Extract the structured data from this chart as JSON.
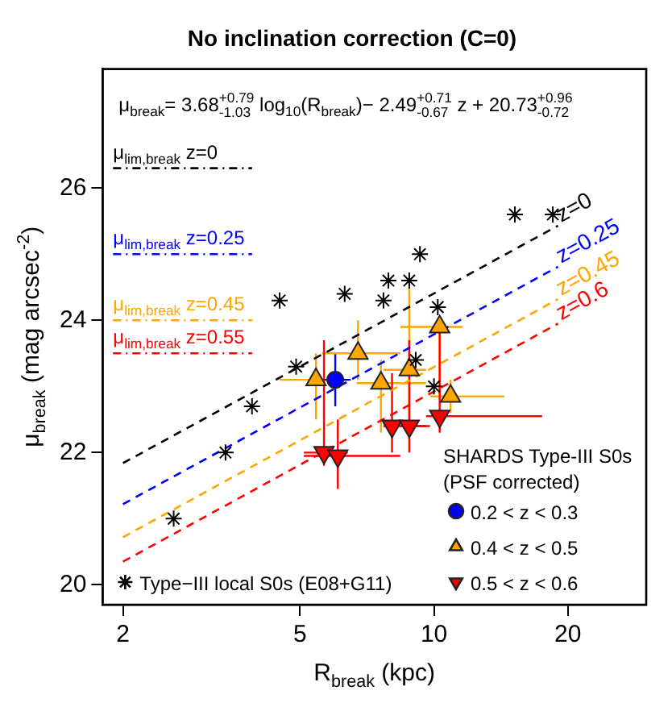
{
  "chart_data": {
    "type": "scatter",
    "title": "No inclination correction (C=0)",
    "xlabel": "R$_{break}$ (kpc)",
    "ylabel": "μ$_{break}$ (mag arcsec$^{-2}$)",
    "annotations": [
      "μ$_{break}$= 3.68$^{+0.79}$$_{-1.03}$ log$_{10}$(R$_{break}$)− 2.49$^{+0.71}$$_{-0.67}$ z + 20.73$^{+0.96}$$_{-0.72}$"
    ],
    "legend_title": "SHARDS Type-III S0s\n(PSF corrected)",
    "log": "x",
    "xlim": [
      1.8,
      30
    ],
    "xticks": [
      2,
      5,
      10,
      20
    ],
    "ylim": [
      19.7,
      27.8
    ],
    "yticks": [
      20,
      22,
      24,
      26
    ],
    "grid": false,
    "legend": "bottom",
    "series": [
      {
        "type": "line",
        "name": "z=0",
        "color": "#000000",
        "line_style": "dashed",
        "marker": "none",
        "x": [
          2,
          19
        ],
        "values": [
          21.84,
          25.43
        ]
      },
      {
        "type": "line",
        "name": "z=0.25",
        "color": "#0000ff",
        "line_style": "dashed",
        "marker": "none",
        "x": [
          2,
          19
        ],
        "values": [
          21.22,
          24.81
        ]
      },
      {
        "type": "line",
        "name": "z=0.45",
        "color": "#ffa500",
        "line_style": "dashed",
        "marker": "none",
        "x": [
          2,
          19
        ],
        "values": [
          20.72,
          24.32
        ]
      },
      {
        "type": "line",
        "name": "z=0.6",
        "color": "#ff0000",
        "line_style": "dashed",
        "marker": "none",
        "x": [
          2,
          19
        ],
        "values": [
          20.35,
          23.95
        ]
      },
      {
        "type": "line",
        "name": "μ$_{lim,break}$ z=0",
        "color": "#000000",
        "line_style": "dotted",
        "marker": "none",
        "x": [
          1.9,
          3.9
        ],
        "values": [
          26.3,
          26.3
        ]
      },
      {
        "type": "line",
        "name": "μ$_{lim,break}$ z=0.25",
        "color": "#0000ff",
        "line_style": "dotted",
        "marker": "none",
        "x": [
          1.9,
          3.9
        ],
        "values": [
          25.0,
          25.0
        ]
      },
      {
        "type": "line",
        "name": "μ$_{lim,break}$ z=0.45",
        "color": "#ffa500",
        "line_style": "dotted",
        "marker": "none",
        "x": [
          1.9,
          3.9
        ],
        "values": [
          24.0,
          24.0
        ]
      },
      {
        "type": "line",
        "name": "μ$_{lim,break}$ z=0.55",
        "color": "#ff0000",
        "line_style": "dotted",
        "marker": "none",
        "x": [
          1.9,
          3.9
        ],
        "values": [
          23.5,
          23.5
        ]
      },
      {
        "type": "scatter",
        "name": "Type−III local S0s (E08+G11)",
        "color": "#000000",
        "marker": "cross",
        "x": [
          15.2,
          18.5,
          9.3,
          7.9,
          8.8,
          4.5,
          6.3,
          7.7,
          10.2,
          4.9,
          3.9,
          9.1,
          10.0,
          3.4,
          2.6
        ],
        "values": [
          25.6,
          25.6,
          25.0,
          24.6,
          24.6,
          24.3,
          24.4,
          24.3,
          24.2,
          23.3,
          22.7,
          23.4,
          23.0,
          22.0,
          21.0
        ]
      },
      {
        "type": "scatter",
        "name": "0.2 < z < 0.3",
        "color": "#0000ff",
        "marker": "circle",
        "x": [
          6.0
        ],
        "values": [
          23.1
        ],
        "errors": [
          0.4
        ],
        "xerrors": [
          [
            5.6,
            6.5
          ]
        ]
      },
      {
        "type": "scatter",
        "name": "0.4 < z < 0.5",
        "color": "#ffa500",
        "marker": "triangle",
        "x": [
          5.43,
          6.75,
          7.6,
          8.8,
          10.3,
          10.9
        ],
        "values": [
          23.1,
          23.5,
          23.05,
          23.25,
          23.9,
          22.85
        ],
        "errors": [
          [
            22.5,
            23.5
          ],
          [
            23.1,
            24.0
          ],
          [
            22.3,
            23.4
          ],
          [
            22.3,
            24.5
          ],
          [
            22.8,
            24.0
          ],
          [
            22.6,
            23.1
          ]
        ],
        "xerrors": [
          [
            4.5,
            5.6
          ],
          [
            5.6,
            8.4
          ],
          [
            6.7,
            9.6
          ],
          [
            7.7,
            9.6
          ],
          [
            8.4,
            11.6
          ],
          [
            9.8,
            14.4
          ]
        ]
      },
      {
        "type": "scatter",
        "name": "0.5 < z < 0.6",
        "color": "#ff0000",
        "marker": "triangle-down",
        "x": [
          5.66,
          6.08,
          8.05,
          8.8,
          10.3
        ],
        "values": [
          22.0,
          21.95,
          22.4,
          22.4,
          22.55
        ],
        "errors": [
          [
            21.8,
            23.7
          ],
          [
            21.45,
            22.5
          ],
          [
            22.0,
            23.2
          ],
          [
            22.0,
            23.7
          ],
          [
            22.3,
            24.0
          ]
        ],
        "xerrors": [
          [
            5.1,
            6.4
          ],
          [
            5.1,
            8.4
          ],
          [
            7.7,
            9.6
          ],
          [
            8.4,
            9.8
          ],
          [
            9.6,
            17.5
          ]
        ]
      }
    ]
  }
}
